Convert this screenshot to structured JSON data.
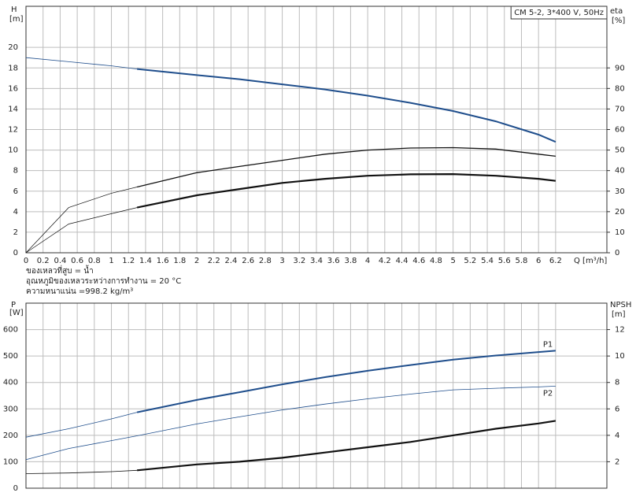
{
  "chart_data": [
    {
      "type": "line",
      "title": "CM 5-2, 3*400 V, 50Hz",
      "y_label": "H",
      "y_unit": "[m]",
      "y2_label": "eta",
      "y2_unit": "[%]",
      "x_label": "Q [m³/h]",
      "notes": [
        "ของเหลวที่สูบ = น้ำ",
        "อุณหภูมิของเหลวระหว่างการทำงาน = 20 °C",
        "ความหนาแน่น =998.2 kg/m³"
      ],
      "x": [
        0,
        0.5,
        1.0,
        1.3,
        2.0,
        2.5,
        3.0,
        3.5,
        4.0,
        4.5,
        5.0,
        5.5,
        6.0,
        6.2
      ],
      "xlim": [
        0,
        6.8
      ],
      "xticks": [
        0,
        0.2,
        0.4,
        0.6,
        0.8,
        1.0,
        1.2,
        1.4,
        1.6,
        1.8,
        2.0,
        2.2,
        2.4,
        2.6,
        2.8,
        3.0,
        3.2,
        3.4,
        3.6,
        3.8,
        4.0,
        4.2,
        4.4,
        4.6,
        4.8,
        5.0,
        5.2,
        5.4,
        5.6,
        5.8,
        6.0,
        6.2
      ],
      "ylim": [
        0,
        24
      ],
      "yticks": [
        0,
        2,
        4,
        6,
        8,
        10,
        12,
        14,
        16,
        18,
        20
      ],
      "y2lim": [
        0,
        120
      ],
      "y2ticks": [
        0,
        10,
        20,
        30,
        40,
        50,
        60,
        70,
        80,
        90
      ],
      "grid": true,
      "series": [
        {
          "color": "#1f4e8c",
          "width": 0.8,
          "values": [
            19,
            18.6,
            18.2,
            17.9,
            null,
            null,
            null,
            null,
            null,
            null,
            null,
            null,
            null,
            null
          ]
        },
        {
          "color": "#1f4e8c",
          "width": 2,
          "values": [
            null,
            null,
            null,
            17.9,
            17.3,
            16.9,
            16.4,
            15.9,
            15.3,
            14.6,
            13.8,
            12.8,
            11.5,
            10.8
          ]
        },
        {
          "color": "#111111",
          "width": 0.7,
          "axis": "y2",
          "values": [
            0,
            22,
            29,
            32,
            null,
            null,
            null,
            null,
            null,
            null,
            null,
            null,
            null,
            null
          ]
        },
        {
          "color": "#111111",
          "width": 1.3,
          "axis": "y2",
          "values": [
            null,
            null,
            null,
            32,
            39,
            42,
            45,
            48,
            50,
            51,
            51.2,
            50.5,
            48,
            47
          ]
        },
        {
          "color": "#111111",
          "width": 0.7,
          "axis": "y2",
          "values": [
            0,
            14,
            19,
            22,
            null,
            null,
            null,
            null,
            null,
            null,
            null,
            null,
            null,
            null
          ]
        },
        {
          "color": "#111111",
          "width": 2.2,
          "axis": "y2",
          "values": [
            null,
            null,
            null,
            22,
            28,
            31,
            34,
            36,
            37.5,
            38.2,
            38.3,
            37.5,
            36,
            35
          ]
        }
      ]
    },
    {
      "type": "line",
      "y_label": "P",
      "y_unit": "[W]",
      "y2_label": "NPSH",
      "y2_unit": "[m]",
      "x": [
        0,
        0.5,
        1.0,
        1.3,
        2.0,
        2.5,
        3.0,
        3.5,
        4.0,
        4.5,
        5.0,
        5.5,
        6.0,
        6.2
      ],
      "xlim": [
        0,
        6.8
      ],
      "ylim": [
        0,
        700
      ],
      "yticks": [
        0,
        100,
        200,
        300,
        400,
        500,
        600
      ],
      "y2lim": [
        0,
        14
      ],
      "y2ticks": [
        2,
        4,
        6,
        8,
        10,
        12
      ],
      "grid": true,
      "series": [
        {
          "name": "P1",
          "color": "#1f4e8c",
          "width": 0.8,
          "values": [
            193,
            225,
            262,
            287,
            null,
            null,
            null,
            null,
            null,
            null,
            null,
            null,
            null,
            null
          ]
        },
        {
          "name": "P1",
          "color": "#1f4e8c",
          "width": 2,
          "values": [
            null,
            null,
            null,
            287,
            334,
            363,
            393,
            420,
            444,
            466,
            486,
            502,
            515,
            520
          ]
        },
        {
          "name": "P2",
          "color": "#1f4e8c",
          "width": 0.8,
          "values": [
            108,
            150,
            180,
            198,
            243,
            270,
            296,
            318,
            338,
            356,
            372,
            378,
            383,
            386
          ]
        },
        {
          "color": "#111111",
          "width": 0.8,
          "axis": "y2",
          "values": [
            1.1,
            1.15,
            1.25,
            1.35,
            null,
            null,
            null,
            null,
            null,
            null,
            null,
            null,
            null,
            null
          ]
        },
        {
          "color": "#111111",
          "width": 2.2,
          "axis": "y2",
          "values": [
            null,
            null,
            null,
            1.35,
            1.8,
            2.0,
            2.3,
            2.7,
            3.1,
            3.5,
            4.0,
            4.5,
            4.9,
            5.1
          ]
        }
      ]
    }
  ]
}
